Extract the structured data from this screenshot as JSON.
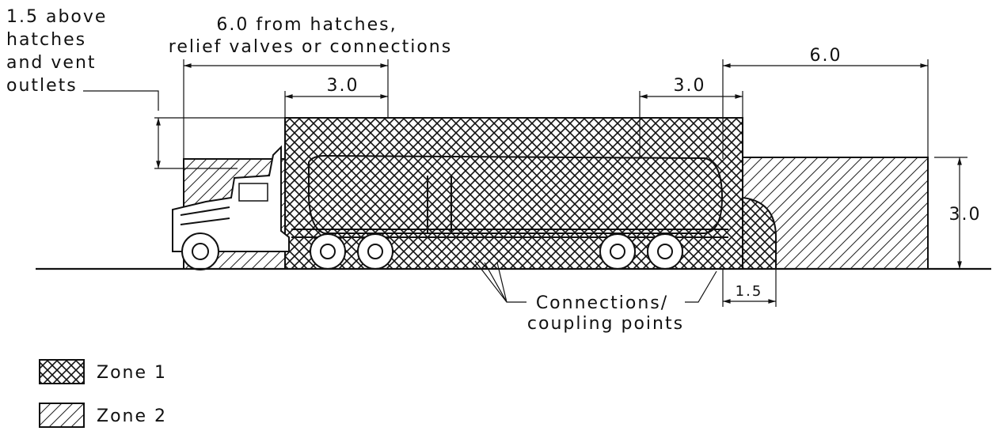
{
  "labels": {
    "hatch_height": [
      "1.5 above",
      "hatches",
      "and vent",
      "outlets"
    ],
    "from_hatches": [
      "6.0 from hatches,",
      "relief valves or connections"
    ],
    "left_width": "3.0",
    "right_width": "3.0",
    "end_width": "6.0",
    "end_height": "3.0",
    "curve_width": "1.5",
    "connections": [
      "Connections/",
      "coupling points"
    ]
  },
  "legend": [
    {
      "label": "Zone 1"
    },
    {
      "label": "Zone 2"
    }
  ]
}
